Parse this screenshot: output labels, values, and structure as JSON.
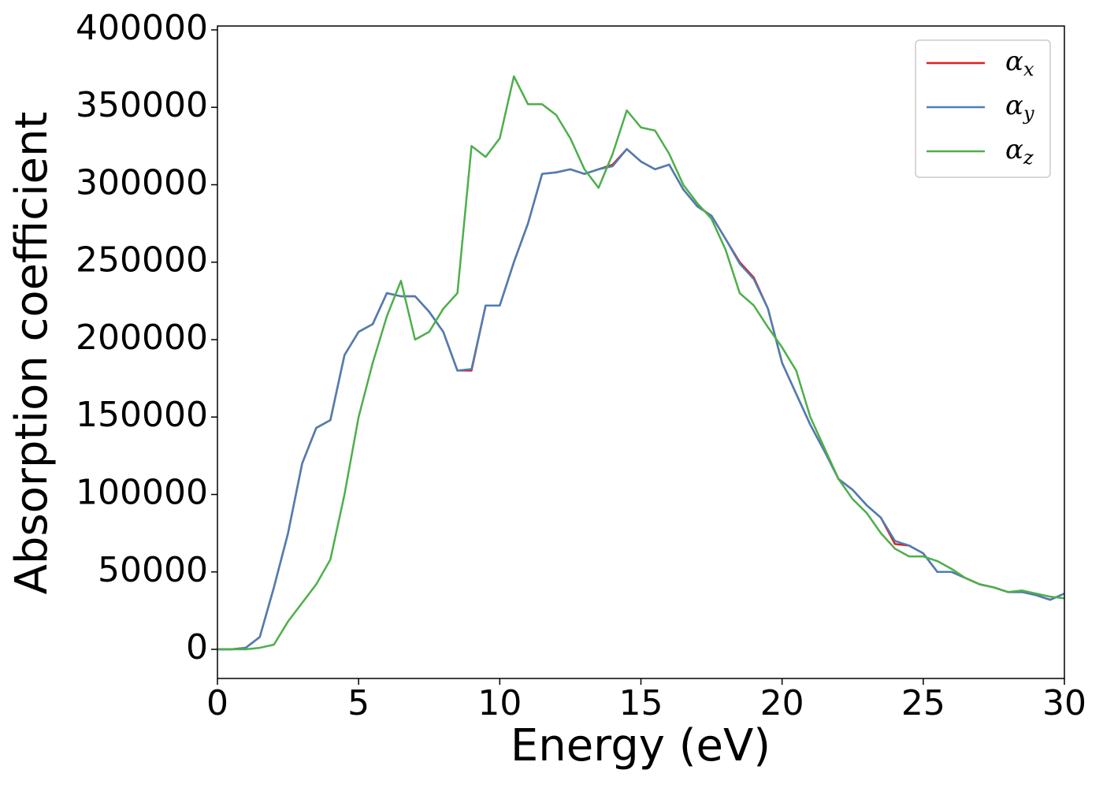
{
  "chart_data": {
    "type": "line",
    "xlabel": "Energy (eV)",
    "ylabel": "Absorption coefficient",
    "x": [
      0,
      0.5,
      1,
      1.5,
      2,
      2.5,
      3,
      3.5,
      4,
      4.5,
      5,
      5.5,
      6,
      6.5,
      7,
      7.5,
      8,
      8.5,
      9,
      9.5,
      10,
      10.5,
      11,
      11.5,
      12,
      12.5,
      13,
      13.5,
      14,
      14.5,
      15,
      15.5,
      16,
      16.5,
      17,
      17.5,
      18,
      18.5,
      19,
      19.5,
      20,
      20.5,
      21,
      21.5,
      22,
      22.5,
      23,
      23.5,
      24,
      24.5,
      25,
      25.5,
      26,
      26.5,
      27,
      27.5,
      28,
      28.5,
      29,
      29.5,
      30
    ],
    "series": [
      {
        "name": "αx",
        "color": "#e41a1c",
        "values": [
          0,
          0,
          1000,
          8000,
          40000,
          75000,
          120000,
          143000,
          148000,
          190000,
          205000,
          210000,
          230000,
          228000,
          228000,
          218000,
          205000,
          180000,
          180000,
          222000,
          222000,
          250000,
          275000,
          307000,
          308000,
          310000,
          307000,
          310000,
          313000,
          323000,
          315000,
          310000,
          313000,
          297000,
          286000,
          280000,
          265000,
          250000,
          240000,
          220000,
          185000,
          165000,
          145000,
          128000,
          110000,
          103000,
          93000,
          85000,
          68000,
          67000,
          62000,
          50000,
          50000,
          46000,
          42000,
          40000,
          37000,
          37000,
          35000,
          32000,
          36000
        ]
      },
      {
        "name": "αy",
        "color": "#4a7fb5",
        "values": [
          0,
          0,
          1000,
          8000,
          40000,
          75000,
          120000,
          143000,
          148000,
          190000,
          205000,
          210000,
          230000,
          228000,
          228000,
          218000,
          205000,
          180000,
          181000,
          222000,
          222000,
          250000,
          275000,
          307000,
          308000,
          310000,
          307000,
          310000,
          312000,
          323000,
          315000,
          310000,
          313000,
          297000,
          286000,
          280000,
          265000,
          249000,
          239000,
          220000,
          185000,
          165000,
          145000,
          128000,
          110000,
          103000,
          93000,
          85000,
          70000,
          67000,
          62000,
          50000,
          50000,
          46000,
          42000,
          40000,
          37000,
          37000,
          35000,
          32000,
          36000
        ]
      },
      {
        "name": "αz",
        "color": "#4daf4a",
        "values": [
          0,
          0,
          0,
          1000,
          3000,
          18000,
          30000,
          42000,
          58000,
          100000,
          150000,
          185000,
          215000,
          238000,
          200000,
          205000,
          220000,
          230000,
          325000,
          318000,
          330000,
          370000,
          352000,
          352000,
          345000,
          330000,
          310000,
          298000,
          320000,
          348000,
          337000,
          335000,
          320000,
          300000,
          288000,
          278000,
          258000,
          230000,
          222000,
          208000,
          195000,
          180000,
          150000,
          130000,
          110000,
          97000,
          88000,
          75000,
          65000,
          60000,
          60000,
          57000,
          52000,
          46000,
          42000,
          40000,
          37000,
          38000,
          36000,
          34000,
          33000
        ]
      }
    ],
    "xlim": [
      0,
      30
    ],
    "xticks": [
      0,
      5,
      10,
      15,
      20,
      25,
      30
    ],
    "ylim": [
      -18800,
      402500
    ],
    "yticks": [
      0,
      50000,
      100000,
      150000,
      200000,
      250000,
      300000,
      350000,
      400000
    ],
    "legend": "upper right"
  }
}
